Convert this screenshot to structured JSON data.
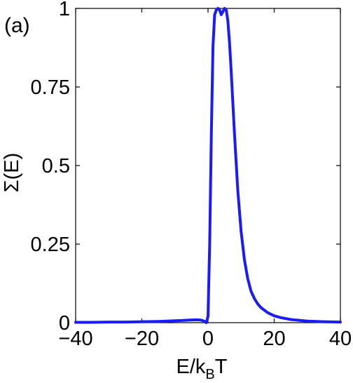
{
  "panel_label": "(a)",
  "chart_data": {
    "type": "line",
    "xlabel_main": "E/k",
    "xlabel_sub": "B",
    "xlabel_tail": "T",
    "ylabel": "Σ(E)",
    "xlim": [
      -40,
      40
    ],
    "ylim": [
      0,
      1
    ],
    "x_ticks": [
      -40,
      -20,
      0,
      20,
      40
    ],
    "x_tick_labels": [
      "−40",
      "−20",
      "0",
      "20",
      "40"
    ],
    "y_ticks": [
      0,
      0.25,
      0.5,
      0.75,
      1
    ],
    "y_tick_labels": [
      "0",
      "0.25",
      "0.5",
      "0.75",
      "1"
    ],
    "grid": false,
    "series": [
      {
        "color": "#1a1aff",
        "x": [
          -40,
          -35,
          -30,
          -25,
          -20,
          -15,
          -10,
          -8,
          -6,
          -4,
          -3,
          -2,
          -1,
          -0.5,
          0,
          0.5,
          1,
          1.5,
          2,
          2.5,
          3,
          3.5,
          4,
          4.5,
          5,
          5.5,
          6,
          6.5,
          7,
          8,
          9,
          10,
          11,
          12,
          13,
          14,
          15,
          16,
          18,
          20,
          22,
          25,
          30,
          35,
          40
        ],
        "y": [
          0.001,
          0.001,
          0.002,
          0.002,
          0.003,
          0.004,
          0.006,
          0.007,
          0.008,
          0.009,
          0.009,
          0.008,
          0.004,
          0.0,
          0.02,
          0.25,
          0.6,
          0.88,
          0.98,
          0.995,
          1.0,
          0.995,
          0.98,
          0.99,
          1.0,
          0.995,
          0.96,
          0.89,
          0.8,
          0.6,
          0.42,
          0.29,
          0.2,
          0.14,
          0.1,
          0.077,
          0.06,
          0.048,
          0.032,
          0.022,
          0.016,
          0.01,
          0.005,
          0.003,
          0.002
        ]
      }
    ]
  }
}
